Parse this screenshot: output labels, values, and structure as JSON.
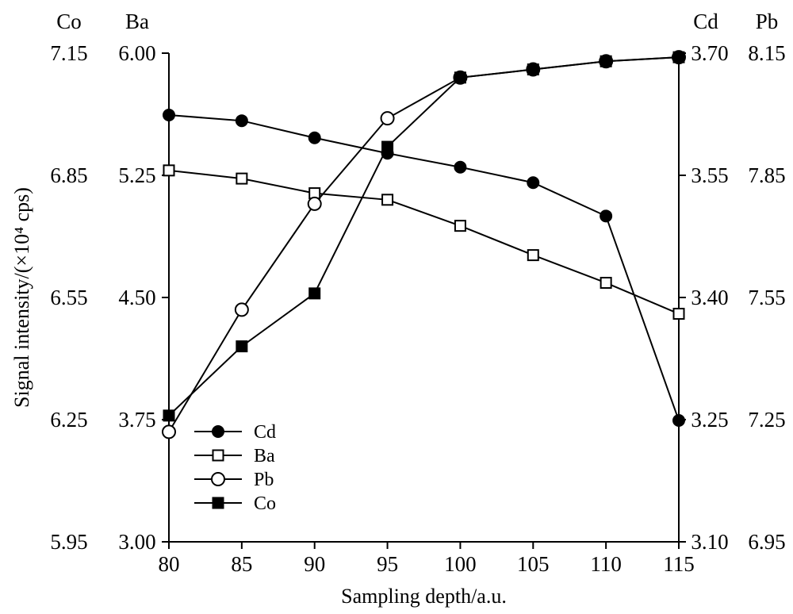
{
  "chart_data": {
    "type": "line",
    "xlabel": "Sampling depth/a.u.",
    "ylabel": "Signal intensity/(×10⁴ cps)",
    "x": [
      80,
      85,
      90,
      95,
      100,
      105,
      110,
      115
    ],
    "xlim": [
      80,
      115
    ],
    "axes": [
      {
        "id": "co",
        "title": "Co",
        "side": "left-outer",
        "ylim": [
          5.95,
          7.15
        ],
        "ticks": [
          "5.95",
          "6.25",
          "6.55",
          "6.85",
          "7.15"
        ]
      },
      {
        "id": "ba",
        "title": "Ba",
        "side": "left-inner",
        "ylim": [
          3.0,
          6.0
        ],
        "ticks": [
          "3.00",
          "3.75",
          "4.50",
          "5.25",
          "6.00"
        ]
      },
      {
        "id": "cd",
        "title": "Cd",
        "side": "right-inner",
        "ylim": [
          3.1,
          3.7
        ],
        "ticks": [
          "3.10",
          "3.25",
          "3.40",
          "3.55",
          "3.70"
        ]
      },
      {
        "id": "pb",
        "title": "Pb",
        "side": "right-outer",
        "ylim": [
          6.95,
          8.15
        ],
        "ticks": [
          "6.95",
          "7.25",
          "7.55",
          "7.85",
          "8.15"
        ]
      }
    ],
    "series": [
      {
        "name": "Cd",
        "axis": "cd",
        "marker": "filled-circle",
        "values": [
          3.624,
          3.617,
          3.596,
          3.577,
          3.56,
          3.541,
          3.5,
          3.249
        ]
      },
      {
        "name": "Ba",
        "axis": "ba",
        "marker": "open-square",
        "values": [
          5.28,
          5.23,
          5.14,
          5.1,
          4.94,
          4.76,
          4.59,
          4.4
        ]
      },
      {
        "name": "Pb",
        "axis": "pb",
        "marker": "open-circle",
        "values": [
          7.22,
          7.52,
          7.78,
          7.99,
          8.09,
          8.11,
          8.13,
          8.14
        ]
      },
      {
        "name": "Co",
        "axis": "co",
        "marker": "filled-square",
        "values": [
          6.26,
          6.43,
          6.56,
          6.92,
          7.09,
          7.11,
          7.13,
          7.14
        ]
      }
    ],
    "legend": {
      "position": "lower-left",
      "entries": [
        "Cd",
        "Ba",
        "Pb",
        "Co"
      ]
    },
    "grid": false
  }
}
